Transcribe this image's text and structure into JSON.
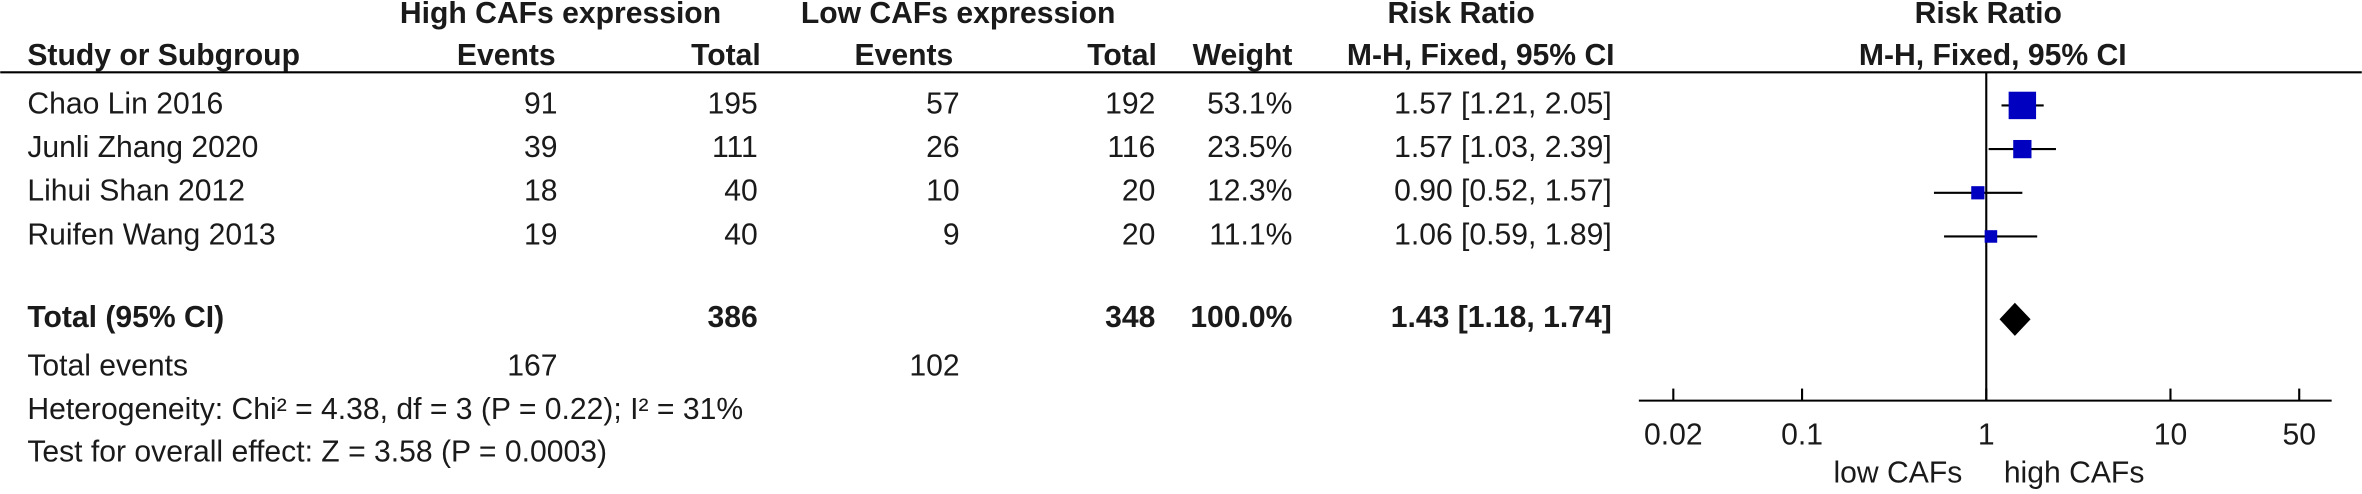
{
  "chart_data": {
    "type": "forest",
    "group_headers": [
      "High CAFs expression",
      "Low CAFs expression",
      "Risk Ratio"
    ],
    "column_headers": [
      "Study or Subgroup",
      "Events",
      "Total",
      "Events",
      "Total",
      "Weight",
      "M-H, Fixed, 95% CI"
    ],
    "plot_title": "Risk Ratio",
    "plot_subtitle": "M-H, Fixed, 95% CI",
    "studies": [
      "Chao Lin 2016",
      "Junli Zhang 2020",
      "Lihui Shan 2012",
      "Ruifen Wang 2013"
    ],
    "events_high": [
      91,
      39,
      18,
      19
    ],
    "total_high": [
      195,
      111,
      40,
      40
    ],
    "events_low": [
      57,
      26,
      10,
      9
    ],
    "total_low": [
      192,
      116,
      20,
      20
    ],
    "weights": [
      53.1,
      23.5,
      12.3,
      11.1
    ],
    "weight_labels": [
      "53.1%",
      "23.5%",
      "12.3%",
      "11.1%"
    ],
    "rr": [
      1.57,
      1.57,
      0.9,
      1.06
    ],
    "ci_low": [
      1.21,
      1.03,
      0.52,
      0.59
    ],
    "ci_high": [
      2.05,
      2.39,
      1.57,
      1.89
    ],
    "ci_labels": [
      "1.57 [1.21, 2.05]",
      "1.57 [1.03, 2.39]",
      "0.90 [0.52, 1.57]",
      "1.06 [0.59, 1.89]"
    ],
    "total": {
      "label": "Total (95% CI)",
      "total_high": 386,
      "total_low": 348,
      "weight": 100,
      "weight_label": "100.0%",
      "rr": 1.43,
      "ci_low": 1.18,
      "ci_high": 1.74,
      "ci_label": "1.43 [1.18, 1.74]"
    },
    "total_events": {
      "label": "Total events",
      "high": 167,
      "low": 102
    },
    "heterogeneity": "Heterogeneity: Chi² = 4.38, df = 3 (P = 0.22); I² = 31%",
    "overall_effect": "Test for overall effect: Z = 3.58 (P = 0.0003)",
    "x_log": true,
    "xlim": [
      0.013,
      75
    ],
    "xticks": [
      0.02,
      0.1,
      1,
      10,
      50
    ],
    "x_labels": [
      "low CAFs",
      "high CAFs"
    ],
    "marker_color": "#0000c0",
    "diamond_color": "#000000"
  }
}
